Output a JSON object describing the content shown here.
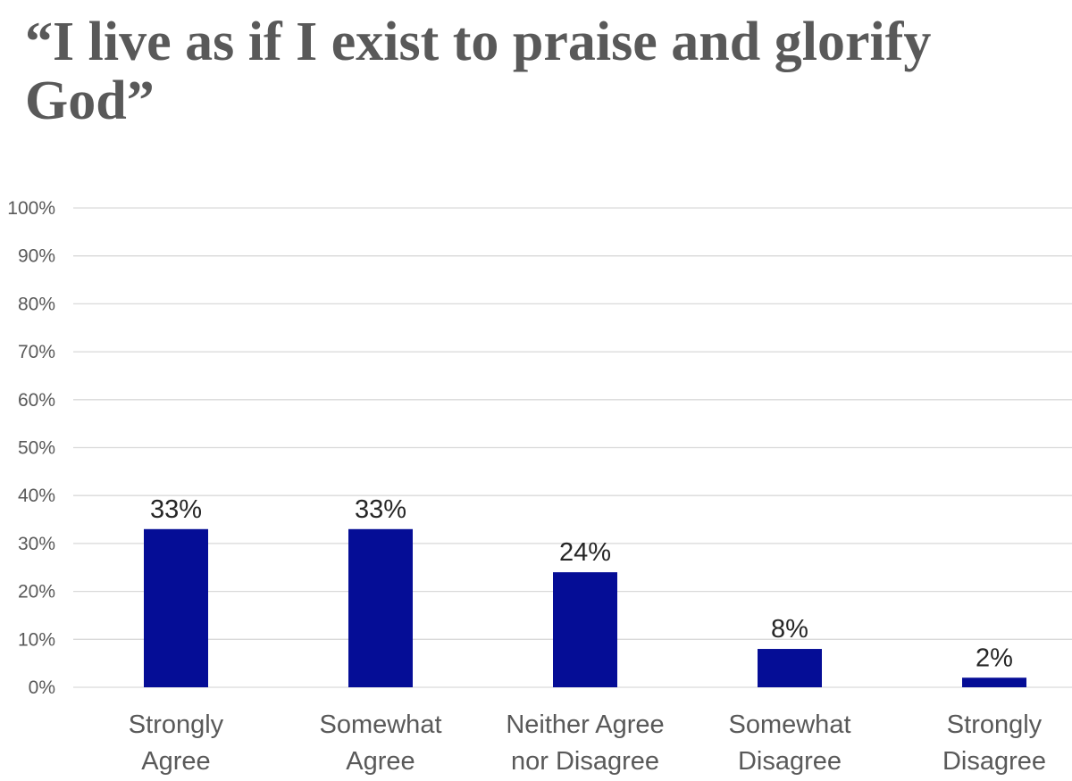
{
  "chart_data": {
    "type": "bar",
    "title": "“I live as if I exist to praise and glorify God”",
    "categories": [
      [
        "Strongly",
        "Agree"
      ],
      [
        "Somewhat",
        "Agree"
      ],
      [
        "Neither Agree",
        "nor Disagree"
      ],
      [
        "Somewhat",
        "Disagree"
      ],
      [
        "Strongly",
        "Disagree"
      ]
    ],
    "values": [
      33,
      33,
      24,
      8,
      2
    ],
    "value_labels": [
      "33%",
      "33%",
      "24%",
      "8%",
      "2%"
    ],
    "ylim": [
      0,
      100
    ],
    "yticks": [
      "0%",
      "10%",
      "20%",
      "30%",
      "40%",
      "50%",
      "60%",
      "70%",
      "80%",
      "90%",
      "100%"
    ],
    "xlabel": "",
    "ylabel": "",
    "grid": true,
    "legend": "none",
    "bar_color": "#050D96"
  }
}
